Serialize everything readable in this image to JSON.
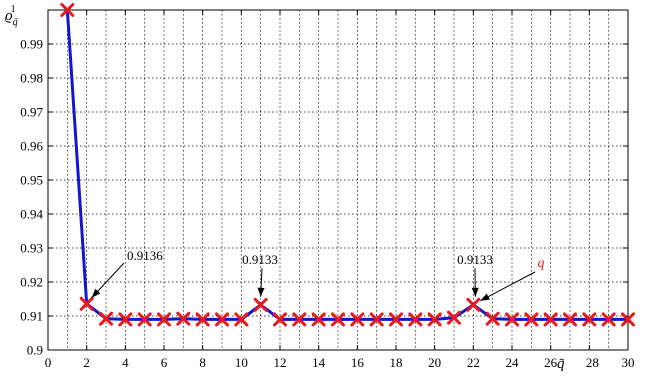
{
  "chart_data": {
    "type": "line",
    "title": "",
    "xlabel": "q̃",
    "ylabel": "ϱ",
    "ylabel_sub": "q̃",
    "ylabel_sup": "1",
    "xlim": [
      0,
      30
    ],
    "ylim": [
      0.9,
      1.0
    ],
    "xticks": [
      0,
      2,
      4,
      6,
      8,
      10,
      12,
      14,
      16,
      18,
      20,
      22,
      24,
      26,
      28,
      30
    ],
    "xtick_labels": [
      "0",
      "2",
      "4",
      "6",
      "8",
      "10",
      "12",
      "14",
      "16",
      "18",
      "20",
      "22",
      "24",
      "26",
      "28",
      "30"
    ],
    "yticks": [
      0.9,
      0.91,
      0.92,
      0.93,
      0.94,
      0.95,
      0.96,
      0.97,
      0.98,
      0.99
    ],
    "ytick_labels": [
      "0.9",
      "0.91",
      "0.92",
      "0.93",
      "0.94",
      "0.95",
      "0.96",
      "0.97",
      "0.98",
      "0.99"
    ],
    "grid": true,
    "series": [
      {
        "x": [
          1,
          2,
          3,
          4,
          5,
          6,
          7,
          8,
          9,
          10,
          11,
          12,
          13,
          14,
          15,
          16,
          17,
          18,
          19,
          20,
          21,
          22,
          23,
          24,
          25,
          26,
          27,
          28,
          29,
          30
        ],
        "values": [
          1.0,
          0.9136,
          0.9092,
          0.909,
          0.909,
          0.909,
          0.9092,
          0.909,
          0.909,
          0.909,
          0.9133,
          0.909,
          0.909,
          0.909,
          0.909,
          0.909,
          0.909,
          0.909,
          0.909,
          0.909,
          0.9095,
          0.9133,
          0.9092,
          0.909,
          0.909,
          0.909,
          0.909,
          0.909,
          0.909,
          0.909
        ],
        "line_color": "#1414d2",
        "marker_color": "#e8191e",
        "marker": "x"
      }
    ],
    "annotations": [
      {
        "text": "0.9136",
        "x": 2,
        "y": 0.9136
      },
      {
        "text": "0.9133",
        "x": 11,
        "y": 0.9133
      },
      {
        "text": "0.9133",
        "x": 22,
        "y": 0.9133
      },
      {
        "text": "q",
        "x": 22,
        "y": 0.9133,
        "color": "#e8191e"
      }
    ]
  }
}
